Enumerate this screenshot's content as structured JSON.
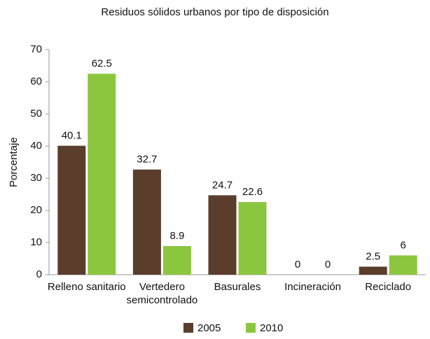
{
  "chart_data": {
    "type": "bar",
    "title": "Residuos sólidos urbanos por tipo de disposición",
    "y_label": "Porcentaje",
    "categories": [
      "Relleno sanitario",
      "Vertedero semicontrolado",
      "Basurales",
      "Incineración",
      "Reciclado"
    ],
    "series": [
      {
        "name": "2005",
        "color": "#5a3d2b",
        "values": [
          40.1,
          32.7,
          24.7,
          0,
          2.5
        ]
      },
      {
        "name": "2010",
        "color": "#8cc63f",
        "values": [
          62.5,
          8.9,
          22.6,
          0,
          6
        ]
      }
    ],
    "ylim": [
      0,
      70
    ],
    "yticks": [
      0,
      10,
      20,
      30,
      40,
      50,
      60,
      70
    ],
    "grid": false,
    "legend": "bottom"
  }
}
